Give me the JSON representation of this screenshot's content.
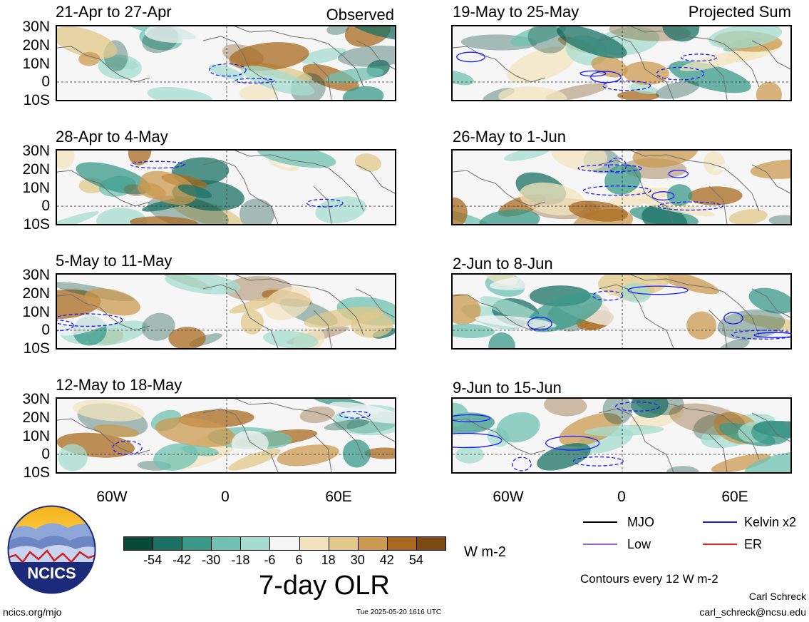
{
  "observed_label": "Observed",
  "projected_label": "Projected Sum",
  "lat_labels": [
    "30N",
    "20N",
    "10N",
    "0",
    "10S"
  ],
  "lon_labels": [
    "60W",
    "0",
    "60E"
  ],
  "panels_left": [
    {
      "title": "21-Apr to 27-Apr"
    },
    {
      "title": "28-Apr to 4-May"
    },
    {
      "title": "5-May to 11-May"
    },
    {
      "title": "12-May to 18-May"
    }
  ],
  "panels_right": [
    {
      "title": "19-May to 25-May"
    },
    {
      "title": "26-May to 1-Jun"
    },
    {
      "title": "2-Jun to 8-Jun"
    },
    {
      "title": "9-Jun to 15-Jun"
    }
  ],
  "colorbar": {
    "ticks": [
      "-54",
      "-42",
      "-30",
      "-18",
      "-6",
      "6",
      "18",
      "30",
      "42",
      "54"
    ],
    "colors": [
      "#0a4a3c",
      "#1a7264",
      "#3a9a8a",
      "#6fc2b2",
      "#a6dccf",
      "#f6f6f6",
      "#f3e4bd",
      "#e2c889",
      "#cb9a4f",
      "#a8691f",
      "#7b4a12"
    ],
    "unit": "W m-2",
    "title": "7-day OLR"
  },
  "legend": {
    "mjo": "MJO",
    "kelvin": "Kelvin x2",
    "low": "Low",
    "er": "ER",
    "contours_note": "Contours every 12 W m-2",
    "colors": {
      "mjo": "#000000",
      "kelvin": "#1a1aff",
      "low": "#9b5fd6",
      "er": "#e02020"
    }
  },
  "logo_text": "NCICS",
  "footer": {
    "site": "ncics.org/mjo",
    "timestamp": "Tue 2025-05-20 1616 UTC",
    "author": "Carl Schreck",
    "email": "carl_schreck@ncsu.edu"
  }
}
